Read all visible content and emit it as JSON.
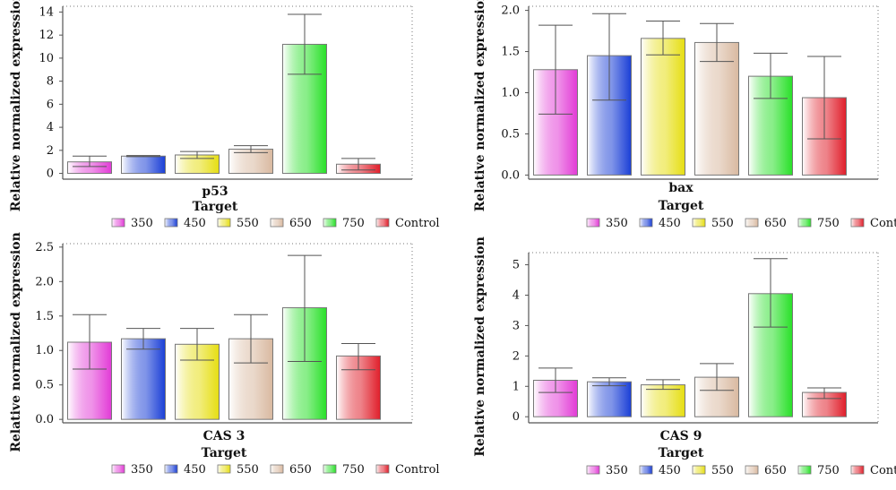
{
  "ylabel": "Relative normalized expression",
  "xlabel": "Target",
  "legend": [
    "350",
    "450",
    "550",
    "650",
    "750",
    "Control"
  ],
  "colors": [
    "#e23ad6",
    "#1a3fd6",
    "#e6de12",
    "#d9b9a0",
    "#28e028",
    "#e01e2a"
  ],
  "chart_data": [
    {
      "type": "bar",
      "target": "p53",
      "xlabel": "Target",
      "ylabel": "Relative normalized expression",
      "categories": [
        "350",
        "450",
        "550",
        "650",
        "750",
        "Control"
      ],
      "values": [
        1.0,
        1.5,
        1.6,
        2.1,
        11.2,
        0.8
      ],
      "error_low": [
        0.6,
        1.45,
        1.3,
        1.8,
        8.6,
        0.3
      ],
      "error_high": [
        1.5,
        1.55,
        1.9,
        2.4,
        13.8,
        1.3
      ],
      "ylim": [
        -0.5,
        14.5
      ],
      "yticks": [
        0,
        2,
        4,
        6,
        8,
        10,
        12,
        14
      ],
      "tick_decimals": 0
    },
    {
      "type": "bar",
      "target": "bax",
      "xlabel": "Target",
      "ylabel": "Relative normalized expression",
      "categories": [
        "350",
        "450",
        "550",
        "650",
        "750",
        "Control"
      ],
      "values": [
        1.28,
        1.45,
        1.66,
        1.61,
        1.2,
        0.94
      ],
      "error_low": [
        0.74,
        0.91,
        1.46,
        1.38,
        0.93,
        0.44
      ],
      "error_high": [
        1.82,
        1.96,
        1.87,
        1.84,
        1.48,
        1.44
      ],
      "ylim": [
        -0.05,
        2.05
      ],
      "yticks": [
        0.0,
        0.5,
        1.0,
        1.5,
        2.0
      ],
      "tick_decimals": 1
    },
    {
      "type": "bar",
      "target": "CAS 3",
      "xlabel": "Target",
      "ylabel": "Relative normalized expression",
      "categories": [
        "350",
        "450",
        "550",
        "650",
        "750",
        "Control"
      ],
      "values": [
        1.12,
        1.17,
        1.09,
        1.17,
        1.62,
        0.92
      ],
      "error_low": [
        0.73,
        1.02,
        0.86,
        0.82,
        0.84,
        0.72
      ],
      "error_high": [
        1.52,
        1.32,
        1.32,
        1.52,
        2.38,
        1.1
      ],
      "ylim": [
        -0.05,
        2.55
      ],
      "yticks": [
        0.0,
        0.5,
        1.0,
        1.5,
        2.0,
        2.5
      ],
      "tick_decimals": 1
    },
    {
      "type": "bar",
      "target": "CAS 9",
      "xlabel": "Target",
      "ylabel": "Relative normalized expression",
      "categories": [
        "350",
        "450",
        "550",
        "650",
        "750",
        "Control"
      ],
      "values": [
        1.2,
        1.15,
        1.05,
        1.3,
        4.05,
        0.8
      ],
      "error_low": [
        0.8,
        1.02,
        0.9,
        0.87,
        2.95,
        0.6
      ],
      "error_high": [
        1.6,
        1.28,
        1.22,
        1.75,
        5.2,
        0.95
      ],
      "ylim": [
        -0.2,
        5.4
      ],
      "yticks": [
        0,
        1,
        2,
        3,
        4,
        5
      ],
      "tick_decimals": 0
    }
  ]
}
